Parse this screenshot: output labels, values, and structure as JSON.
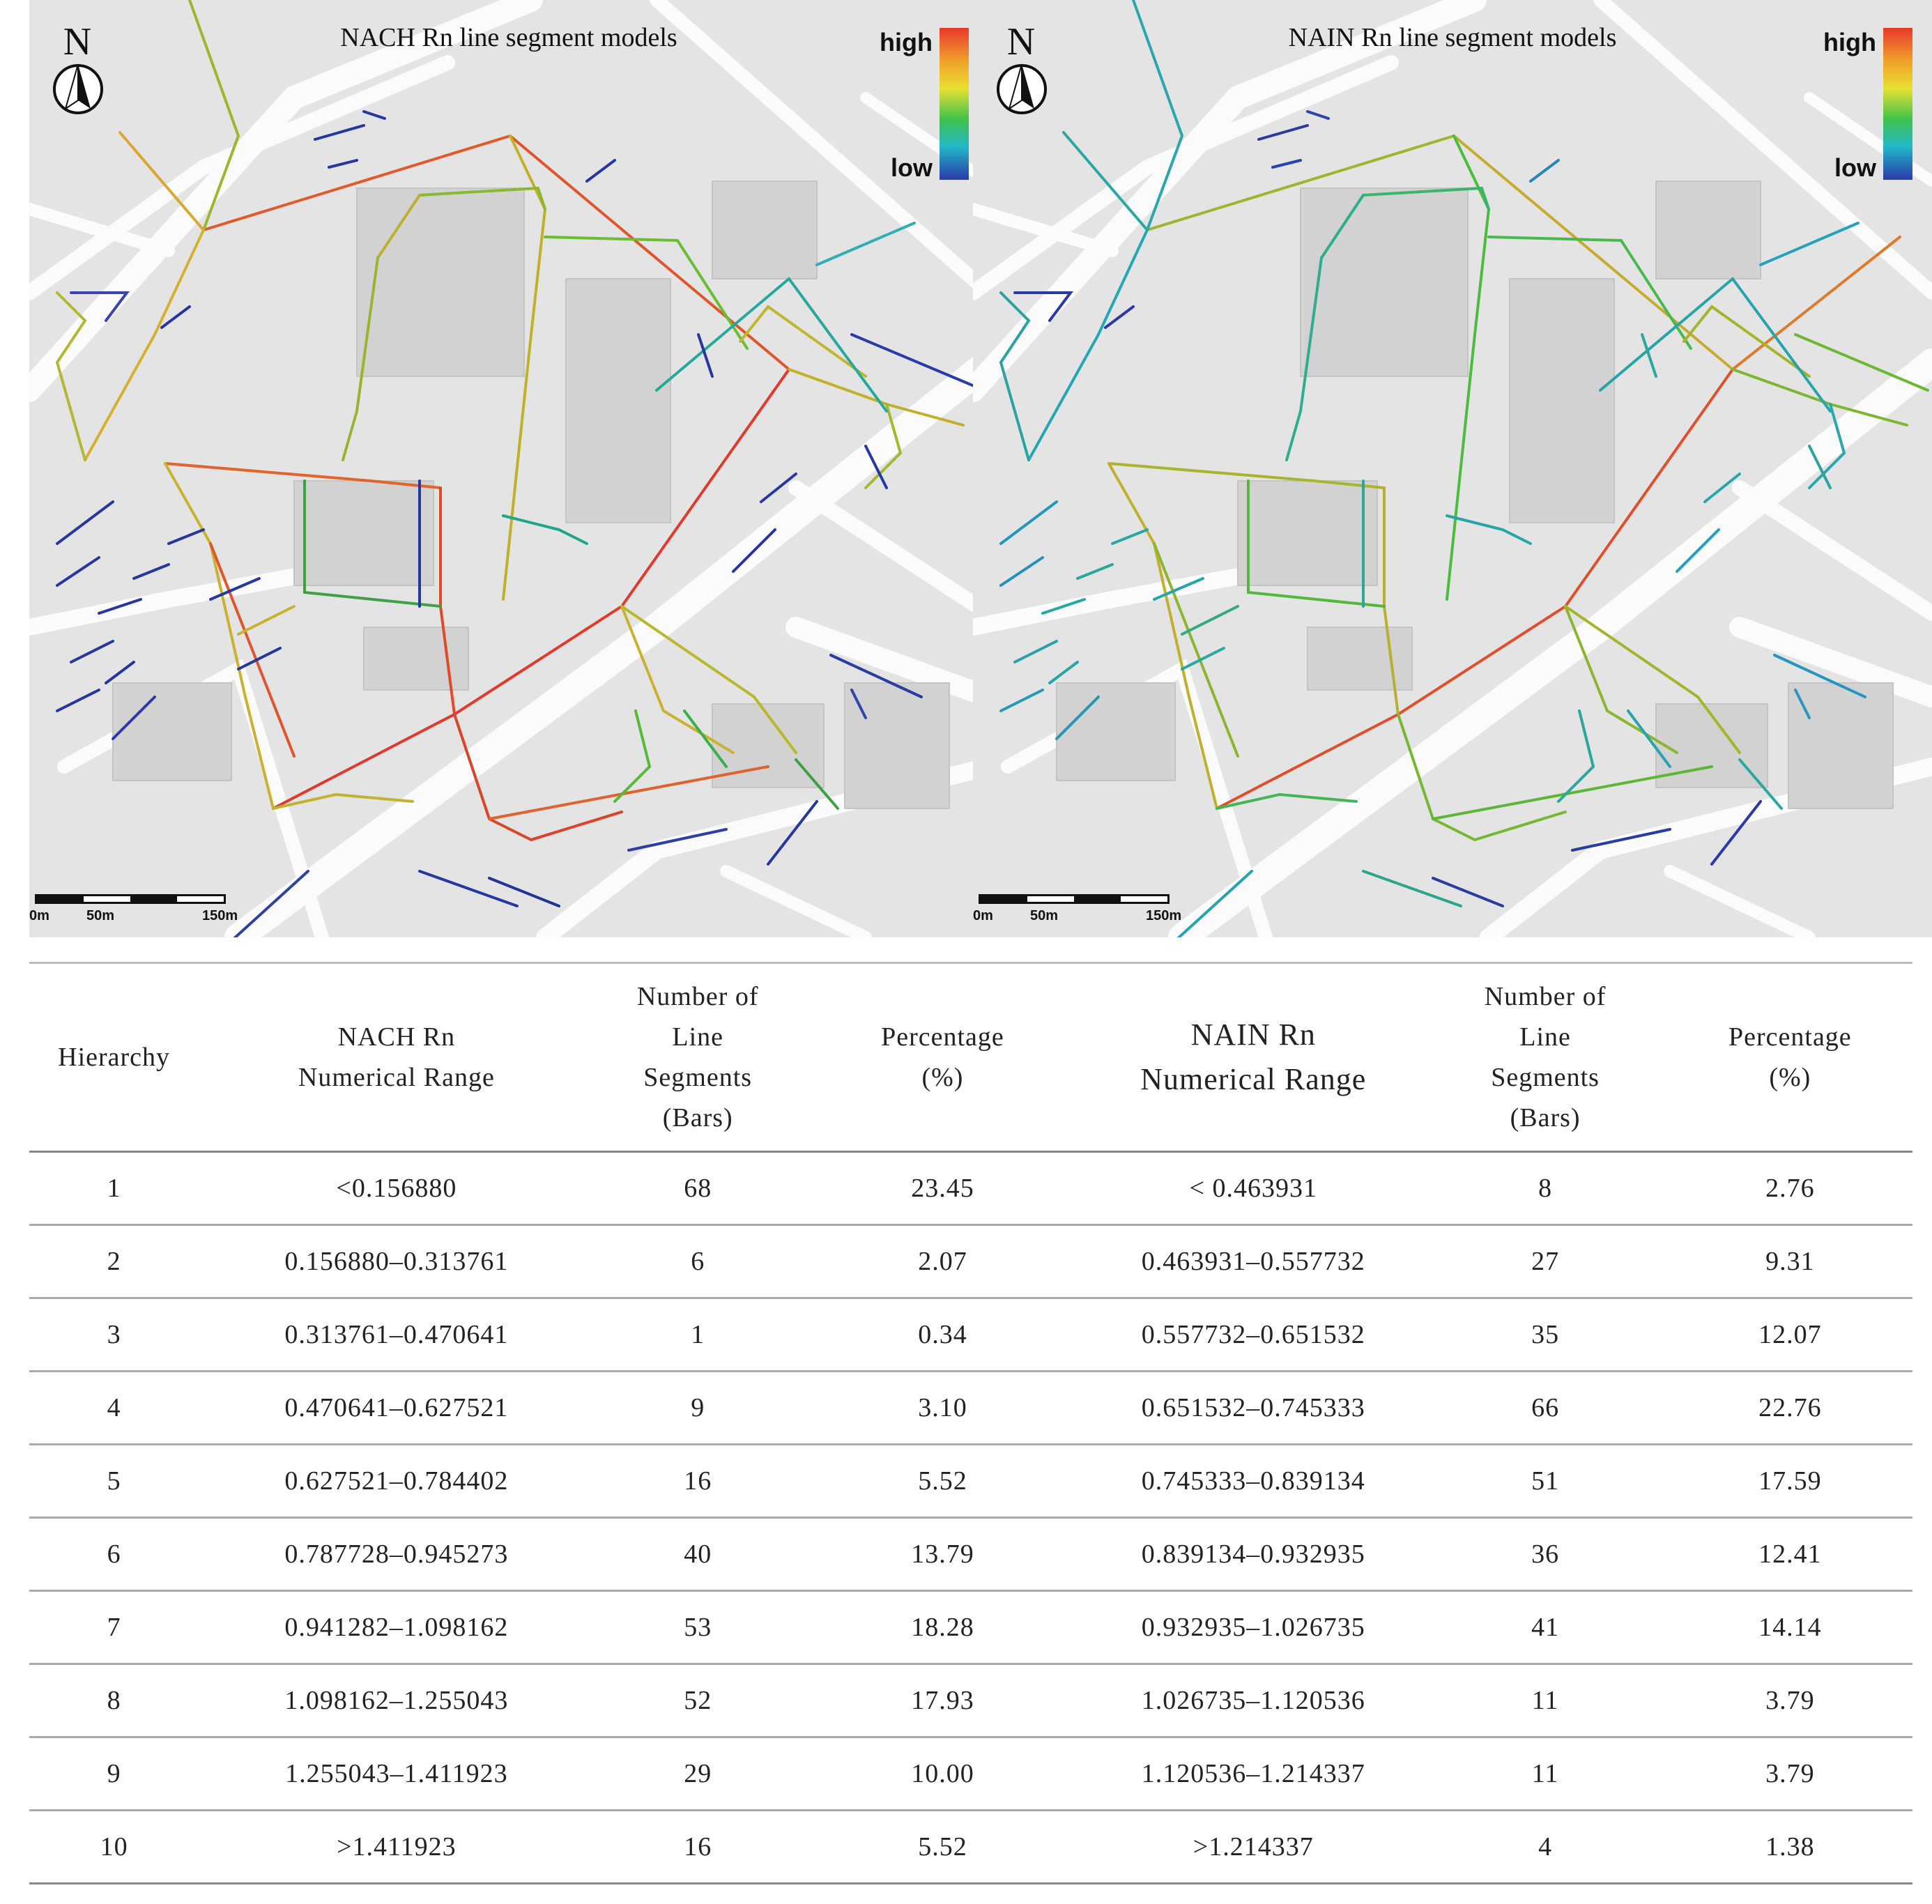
{
  "left_map": {
    "title": "NACH Rn line segment models",
    "north": "N",
    "legend": {
      "high": "high",
      "low": "low"
    },
    "scale": {
      "labels": [
        "0m",
        "50m",
        "150m"
      ]
    }
  },
  "right_map": {
    "title": "NAIN Rn line segment models",
    "north": "N",
    "legend": {
      "high": "high",
      "low": "low"
    },
    "scale": {
      "labels": [
        "0m",
        "50m",
        "150m"
      ]
    }
  },
  "table": {
    "headers": {
      "hierarchy": "Hierarchy",
      "nach_range_1": "NACH Rn",
      "nach_range_2": "Numerical Range",
      "count_1": "Number of",
      "count_2": "Line",
      "count_3": "Segments",
      "count_4": "(Bars)",
      "pct_1": "Percentage",
      "pct_2": "(%)",
      "nain_range_1": "NAIN Rn",
      "nain_range_2": "Numerical Range"
    },
    "rows": [
      {
        "h": "1",
        "nach": "<0.156880",
        "nach_n": "68",
        "nach_p": "23.45",
        "nain": "< 0.463931",
        "nain_n": "8",
        "nain_p": "2.76"
      },
      {
        "h": "2",
        "nach": "0.156880–0.313761",
        "nach_n": "6",
        "nach_p": "2.07",
        "nain": "0.463931–0.557732",
        "nain_n": "27",
        "nain_p": "9.31"
      },
      {
        "h": "3",
        "nach": "0.313761–0.470641",
        "nach_n": "1",
        "nach_p": "0.34",
        "nain": "0.557732–0.651532",
        "nain_n": "35",
        "nain_p": "12.07"
      },
      {
        "h": "4",
        "nach": "0.470641–0.627521",
        "nach_n": "9",
        "nach_p": "3.10",
        "nain": "0.651532–0.745333",
        "nain_n": "66",
        "nain_p": "22.76"
      },
      {
        "h": "5",
        "nach": "0.627521–0.784402",
        "nach_n": "16",
        "nach_p": "5.52",
        "nain": "0.745333–0.839134",
        "nain_n": "51",
        "nain_p": "17.59"
      },
      {
        "h": "6",
        "nach": "0.787728–0.945273",
        "nach_n": "40",
        "nach_p": "13.79",
        "nain": "0.839134–0.932935",
        "nain_n": "36",
        "nain_p": "12.41"
      },
      {
        "h": "7",
        "nach": "0.941282–1.098162",
        "nach_n": "53",
        "nach_p": "18.28",
        "nain": "0.932935–1.026735",
        "nain_n": "41",
        "nain_p": "14.14"
      },
      {
        "h": "8",
        "nach": "1.098162–1.255043",
        "nach_n": "52",
        "nach_p": "17.93",
        "nain": "1.026735–1.120536",
        "nain_n": "11",
        "nain_p": "3.79"
      },
      {
        "h": "9",
        "nach": "1.255043–1.411923",
        "nach_n": "29",
        "nach_p": "10.00",
        "nain": "1.120536–1.214337",
        "nain_n": "11",
        "nain_p": "3.79"
      },
      {
        "h": "10",
        "nach": ">1.411923",
        "nach_n": "16",
        "nach_p": "5.52",
        "nain": ">1.214337",
        "nain_n": "4",
        "nain_p": "1.38"
      }
    ]
  }
}
